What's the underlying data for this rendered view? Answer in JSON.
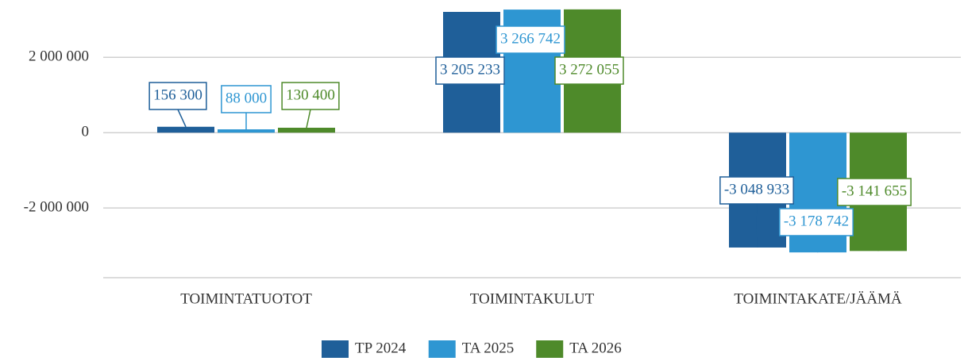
{
  "chart_data": {
    "type": "bar",
    "categories": [
      "TOIMINTATUOTOT",
      "TOIMINTAKULUT",
      "TOIMINTAKATE/JÄÄMÄ"
    ],
    "series": [
      {
        "name": "TP 2024",
        "color": "#1f5f99",
        "values": [
          156300,
          3205233,
          -3048933
        ],
        "value_labels": [
          "156 300",
          "3 205 233",
          "-3 048 933"
        ]
      },
      {
        "name": "TA 2025",
        "color": "#2e96d2",
        "values": [
          88000,
          3266742,
          -3178742
        ],
        "value_labels": [
          "88 000",
          "3 266 742",
          "-3 178 742"
        ]
      },
      {
        "name": "TA 2026",
        "color": "#4e8a2a",
        "values": [
          130400,
          3272055,
          -3141655
        ],
        "value_labels": [
          "130 400",
          "3 272 055",
          "-3 141 655"
        ]
      }
    ],
    "ylim": [
      -3850000,
      3500000
    ],
    "yticks": [
      {
        "value": -2000000,
        "label": "-2 000 000"
      },
      0,
      {
        "value": 2000000,
        "label": "2 000 000"
      }
    ],
    "grid": true,
    "legend": "bottom"
  }
}
